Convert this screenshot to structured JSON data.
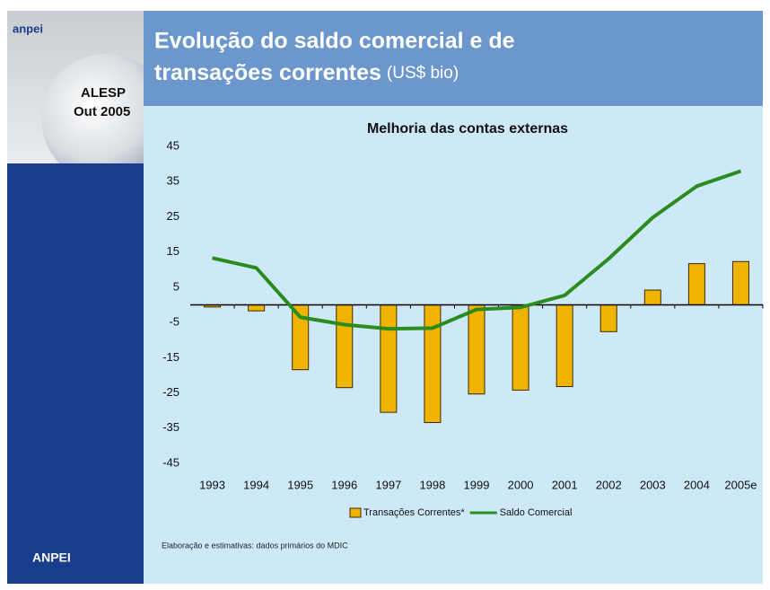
{
  "slide": {
    "logo": "anpei",
    "event": [
      "ALESP",
      "Out 2005"
    ],
    "footer": "ANPEI",
    "title": [
      "Evolução do saldo comercial e de",
      "transações correntes"
    ],
    "title_unit": "(US$ bio)",
    "source": "Elaboração e estimativas: dados primários do MDIC"
  },
  "chart_data": {
    "type": "bar",
    "title": "Melhoria das contas externas",
    "categories": [
      "1993",
      "1994",
      "1995",
      "1996",
      "1997",
      "1998",
      "1999",
      "2000",
      "2001",
      "2002",
      "2003",
      "2004",
      "2005e"
    ],
    "series": [
      {
        "name": "Transações Correntes*",
        "type": "bar",
        "color": "#f0b400",
        "values": [
          -0.6,
          -1.7,
          -18.4,
          -23.5,
          -30.5,
          -33.4,
          -25.3,
          -24.2,
          -23.2,
          -7.6,
          4.2,
          11.7,
          12.3
        ]
      },
      {
        "name": "Saldo Comercial",
        "type": "line",
        "color": "#2a8c1e",
        "values": [
          13.3,
          10.5,
          -3.5,
          -5.6,
          -6.8,
          -6.6,
          -1.3,
          -0.7,
          2.7,
          13.1,
          24.8,
          33.7,
          38.0
        ]
      }
    ],
    "ylim": [
      -45,
      45
    ],
    "yticks": [
      45,
      35,
      25,
      15,
      5,
      -5,
      -15,
      -25,
      -35,
      -45
    ],
    "grid": false,
    "legend": "bottom"
  }
}
